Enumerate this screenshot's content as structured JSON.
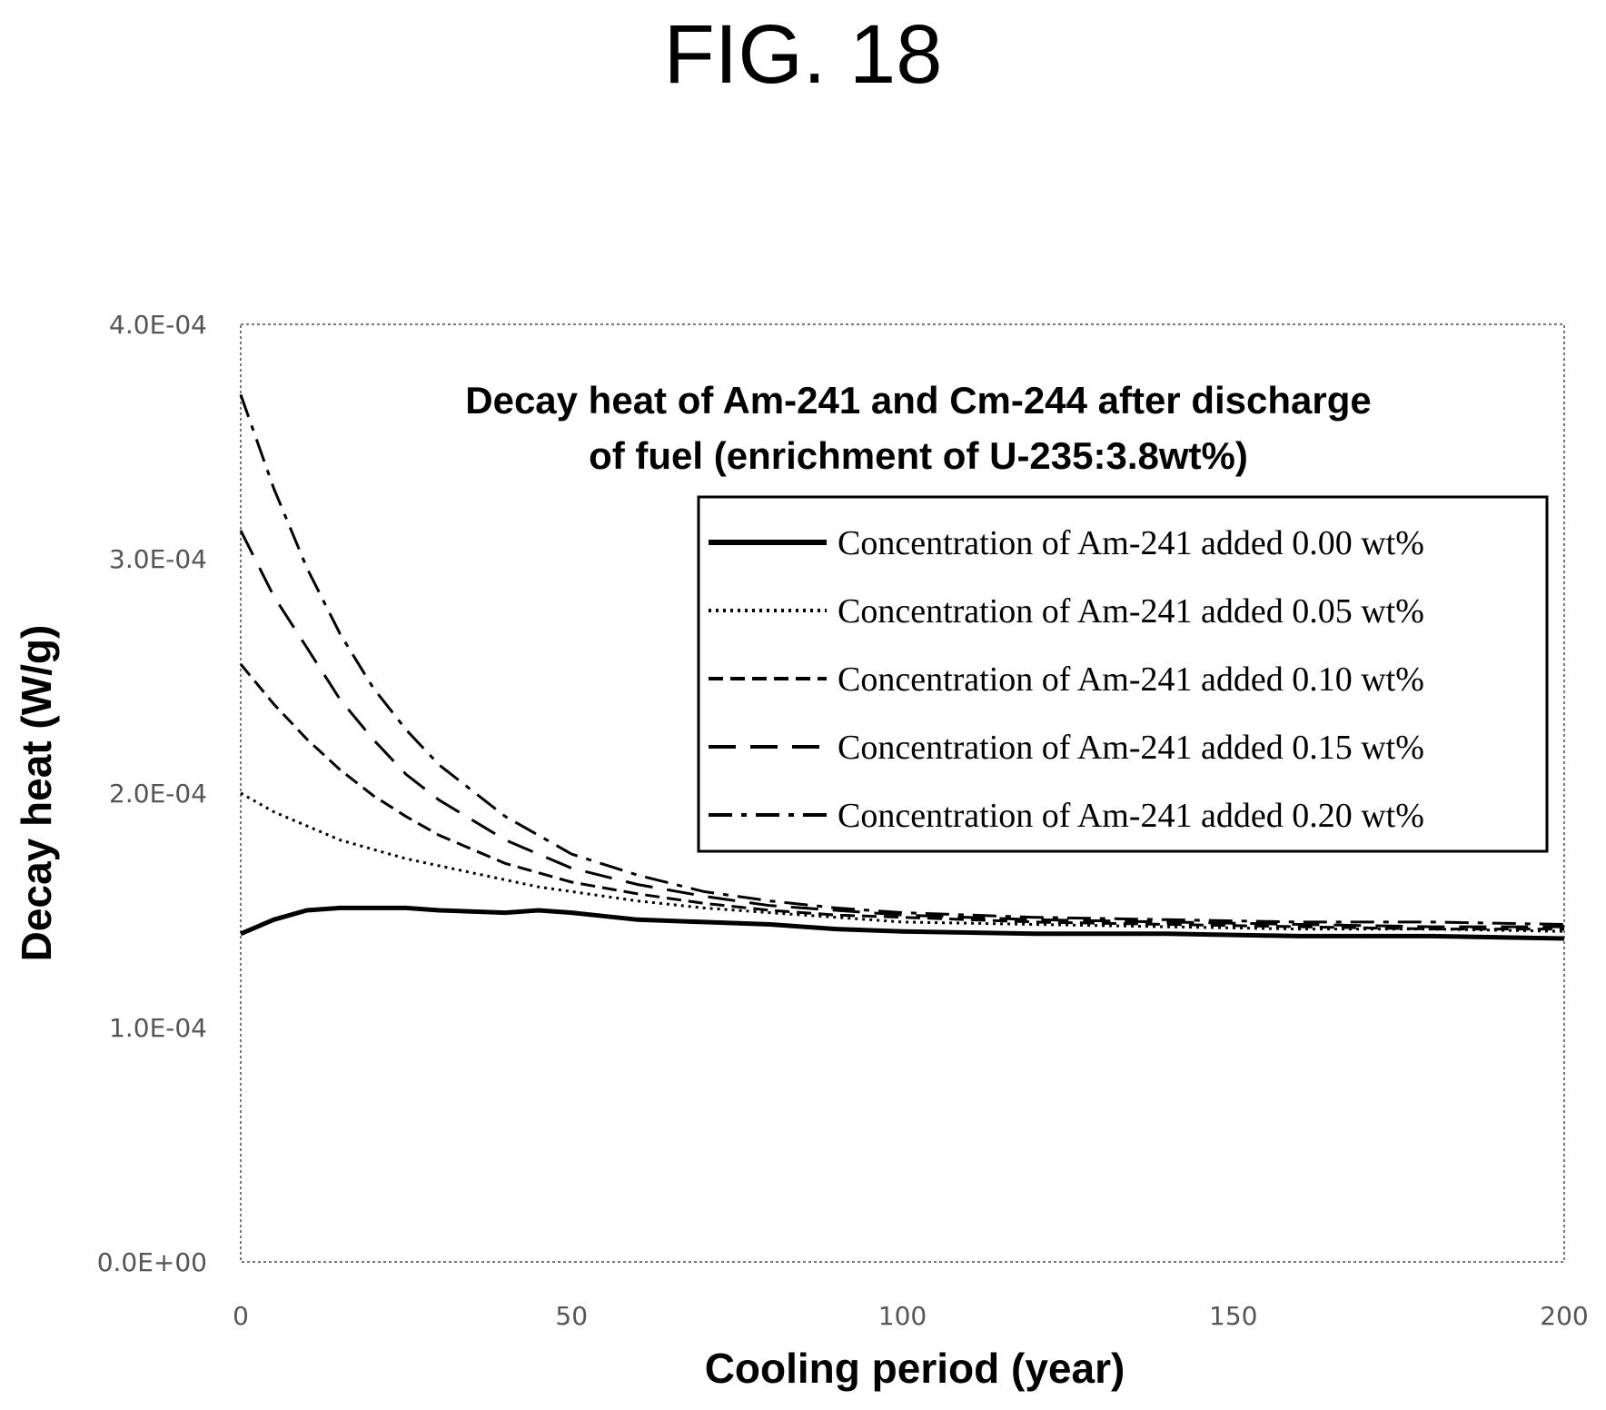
{
  "figure_label": "FIG. 18",
  "chart_data": {
    "type": "line",
    "title_lines": [
      "Decay heat of Am-241 and Cm-244 after discharge",
      "of fuel (enrichment of U-235:3.8wt%)"
    ],
    "xlabel": "Cooling period (year)",
    "ylabel": "Decay heat (W/g)",
    "xlim": [
      0,
      200
    ],
    "ylim": [
      0,
      0.0004
    ],
    "x_ticks": [
      0,
      50,
      100,
      150,
      200
    ],
    "x_tick_labels": [
      "0",
      "50",
      "100",
      "150",
      "200"
    ],
    "y_ticks": [
      0,
      0.0001,
      0.0002,
      0.0003,
      0.0004
    ],
    "y_tick_labels": [
      "0.0E+00",
      "1.0E-04",
      "2.0E-04",
      "3.0E-04",
      "4.0E-04"
    ],
    "grid": false,
    "legend_position": "top-right",
    "x": [
      0,
      5,
      10,
      15,
      20,
      25,
      30,
      40,
      45,
      50,
      60,
      70,
      80,
      90,
      100,
      120,
      140,
      160,
      180,
      200
    ],
    "series": [
      {
        "name": "Concentration of Am-241 added 0.00 wt%",
        "dash": "solid",
        "width": 5,
        "values": [
          0.00014,
          0.000146,
          0.00015,
          0.000151,
          0.000151,
          0.000151,
          0.00015,
          0.000149,
          0.00015,
          0.000149,
          0.000146,
          0.000145,
          0.000144,
          0.000142,
          0.000141,
          0.00014,
          0.00014,
          0.000139,
          0.000139,
          0.000138
        ]
      },
      {
        "name": "Concentration of Am-241 added 0.05 wt%",
        "dash": "dotted",
        "width": 3,
        "values": [
          0.0002,
          0.000192,
          0.000186,
          0.00018,
          0.000176,
          0.000172,
          0.000169,
          0.000163,
          0.00016,
          0.000158,
          0.000154,
          0.000151,
          0.000149,
          0.000147,
          0.000145,
          0.000144,
          0.000143,
          0.000142,
          0.000142,
          0.000141
        ]
      },
      {
        "name": "Concentration of Am-241 added 0.10 wt%",
        "dash": "short-dash",
        "width": 3,
        "values": [
          0.000255,
          0.000238,
          0.000223,
          0.00021,
          0.000199,
          0.00019,
          0.000182,
          0.00017,
          0.000166,
          0.000162,
          0.000157,
          0.000153,
          0.00015,
          0.000148,
          0.000147,
          0.000145,
          0.000144,
          0.000143,
          0.000142,
          0.000142
        ]
      },
      {
        "name": "Concentration of Am-241 added 0.15 wt%",
        "dash": "long-dash",
        "width": 3,
        "values": [
          0.000312,
          0.000284,
          0.000262,
          0.00024,
          0.000223,
          0.000208,
          0.000197,
          0.00018,
          0.000174,
          0.000168,
          0.000161,
          0.000156,
          0.000152,
          0.00015,
          0.000148,
          0.000146,
          0.000145,
          0.000144,
          0.000143,
          0.000143
        ]
      },
      {
        "name": "Concentration of Am-241 added 0.20 wt%",
        "dash": "dash-dot",
        "width": 3,
        "values": [
          0.00037,
          0.00033,
          0.000296,
          0.000268,
          0.000245,
          0.000227,
          0.000212,
          0.00019,
          0.000182,
          0.000174,
          0.000165,
          0.000158,
          0.000154,
          0.000151,
          0.000149,
          0.000147,
          0.000146,
          0.000145,
          0.000145,
          0.000144
        ]
      }
    ]
  }
}
